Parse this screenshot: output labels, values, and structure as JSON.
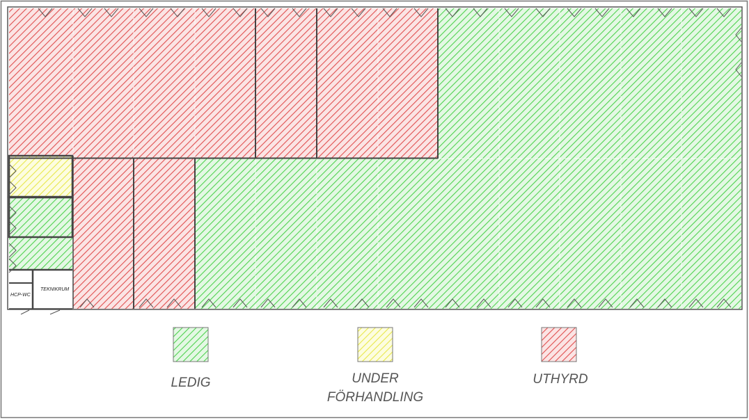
{
  "colors": {
    "ledig": "#4fd24f",
    "under_forhandling": "#e8e84a",
    "uthyrd": "#e05050",
    "wall": "#333333",
    "border": "#555555"
  },
  "rooms": {
    "hcp_wc": "HCP-WC",
    "teknikrum": "TEKNIKRUM"
  },
  "legend": {
    "ledig": "LEDIG",
    "under_line1": "UNDER",
    "under_line2": "FÖRHANDLING",
    "uthyrd": "UTHYRD"
  }
}
